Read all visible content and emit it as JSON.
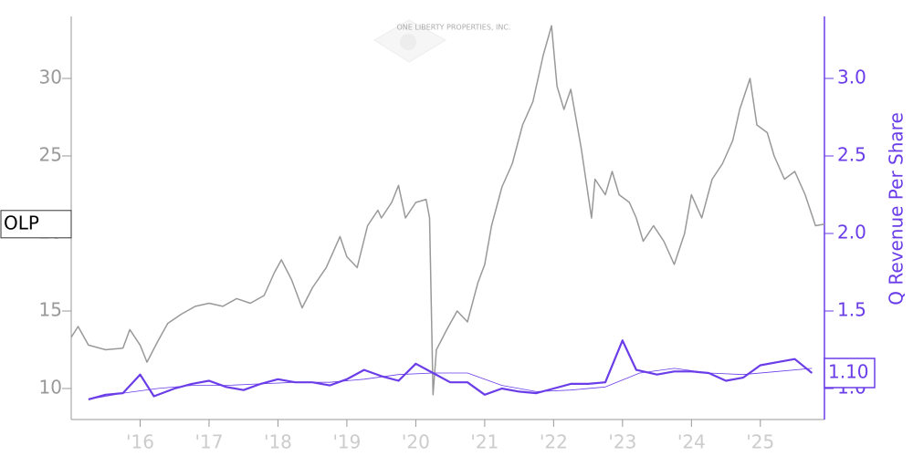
{
  "chart_data": {
    "type": "line",
    "logo_text": "ONE LIBERTY PROPERTIES, INC.",
    "y2_label": "Q Revenue Per Share",
    "xlim": [
      2015.0,
      2025.93
    ],
    "xticks": [
      {
        "value": 2016,
        "label": "'16"
      },
      {
        "value": 2017,
        "label": "'17"
      },
      {
        "value": 2018,
        "label": "'18"
      },
      {
        "value": 2019,
        "label": "'19"
      },
      {
        "value": 2020,
        "label": "'20"
      },
      {
        "value": 2021,
        "label": "'21"
      },
      {
        "value": 2022,
        "label": "'22"
      },
      {
        "value": 2023,
        "label": "'23"
      },
      {
        "value": 2024,
        "label": "'24"
      },
      {
        "value": 2025,
        "label": "'25"
      }
    ],
    "ylim": [
      8,
      34
    ],
    "yticks": [
      10,
      15,
      20,
      25,
      30
    ],
    "y2lim": [
      0.8,
      3.4
    ],
    "y2ticks": [
      {
        "value": 1.0,
        "label": "1.0"
      },
      {
        "value": 1.5,
        "label": "1.5"
      },
      {
        "value": 2.0,
        "label": "2.0"
      },
      {
        "value": 2.5,
        "label": "2.5"
      },
      {
        "value": 3.0,
        "label": "3.0"
      }
    ],
    "series": [
      {
        "name": "OLP",
        "color": "#999999",
        "width": 1.5,
        "x": [
          2015.0,
          2015.1,
          2015.25,
          2015.5,
          2015.75,
          2015.85,
          2016.0,
          2016.1,
          2016.25,
          2016.4,
          2016.6,
          2016.8,
          2017.0,
          2017.2,
          2017.4,
          2017.6,
          2017.8,
          2017.95,
          2018.05,
          2018.2,
          2018.35,
          2018.5,
          2018.7,
          2018.9,
          2019.0,
          2019.15,
          2019.3,
          2019.45,
          2019.5,
          2019.65,
          2019.75,
          2019.85,
          2020.0,
          2020.15,
          2020.2,
          2020.25,
          2020.3,
          2020.45,
          2020.6,
          2020.75,
          2020.9,
          2021.0,
          2021.1,
          2021.25,
          2021.4,
          2021.55,
          2021.7,
          2021.85,
          2021.97,
          2022.05,
          2022.15,
          2022.25,
          2022.4,
          2022.55,
          2022.6,
          2022.75,
          2022.85,
          2022.95,
          2023.1,
          2023.2,
          2023.3,
          2023.45,
          2023.6,
          2023.75,
          2023.9,
          2024.0,
          2024.15,
          2024.3,
          2024.45,
          2024.6,
          2024.7,
          2024.85,
          2024.95,
          2025.1,
          2025.2,
          2025.35,
          2025.5,
          2025.65,
          2025.8,
          2025.93
        ],
        "values": [
          13.3,
          14.0,
          12.8,
          12.5,
          12.6,
          13.8,
          12.8,
          11.7,
          13.0,
          14.2,
          14.8,
          15.3,
          15.5,
          15.3,
          15.8,
          15.5,
          16.0,
          17.5,
          18.3,
          17.0,
          15.2,
          16.5,
          17.8,
          19.8,
          18.5,
          17.8,
          20.5,
          21.5,
          21.0,
          22.0,
          23.1,
          21.0,
          22.0,
          22.2,
          21.0,
          9.6,
          12.5,
          13.8,
          15.0,
          14.3,
          16.8,
          18.0,
          20.5,
          23.0,
          24.5,
          27.0,
          28.5,
          31.5,
          33.4,
          29.5,
          28.0,
          29.3,
          25.5,
          21.0,
          23.5,
          22.5,
          24.0,
          22.5,
          22.0,
          21.0,
          19.5,
          20.5,
          19.5,
          18.0,
          20.0,
          22.5,
          21.0,
          23.5,
          24.5,
          26.0,
          28.0,
          30.0,
          27.0,
          26.5,
          25.0,
          23.5,
          24.0,
          22.5,
          20.5,
          20.6
        ]
      },
      {
        "color": "#6a3de8",
        "width": 0.8,
        "axis": "y2",
        "x": [
          2015.25,
          2015.75,
          2016.25,
          2016.75,
          2017.25,
          2017.75,
          2018.25,
          2018.75,
          2019.25,
          2019.75,
          2020.25,
          2020.75,
          2021.25,
          2021.75,
          2022.25,
          2022.75,
          2023.25,
          2023.75,
          2024.25,
          2024.75,
          2025.25,
          2025.75
        ],
        "values": [
          0.93,
          0.97,
          1.0,
          1.02,
          1.02,
          1.03,
          1.04,
          1.04,
          1.06,
          1.09,
          1.1,
          1.1,
          1.02,
          0.98,
          0.99,
          1.01,
          1.1,
          1.13,
          1.1,
          1.09,
          1.11,
          1.13
        ]
      },
      {
        "color": "#6a3de8",
        "width": 2.2,
        "axis": "y2",
        "x": [
          2015.25,
          2015.5,
          2015.75,
          2016.0,
          2016.2,
          2016.5,
          2016.75,
          2017.0,
          2017.25,
          2017.5,
          2017.75,
          2018.0,
          2018.25,
          2018.5,
          2018.75,
          2019.0,
          2019.25,
          2019.5,
          2019.75,
          2020.0,
          2020.25,
          2020.5,
          2020.75,
          2021.0,
          2021.25,
          2021.5,
          2021.75,
          2022.0,
          2022.25,
          2022.5,
          2022.75,
          2023.0,
          2023.2,
          2023.5,
          2023.75,
          2024.0,
          2024.25,
          2024.5,
          2024.75,
          2025.0,
          2025.25,
          2025.5,
          2025.75
        ],
        "values": [
          0.93,
          0.96,
          0.97,
          1.09,
          0.95,
          1.0,
          1.03,
          1.05,
          1.01,
          0.99,
          1.03,
          1.06,
          1.04,
          1.04,
          1.02,
          1.06,
          1.12,
          1.08,
          1.05,
          1.16,
          1.1,
          1.04,
          1.04,
          0.96,
          1.0,
          0.98,
          0.97,
          1.0,
          1.03,
          1.03,
          1.04,
          1.31,
          1.12,
          1.09,
          1.11,
          1.11,
          1.1,
          1.05,
          1.07,
          1.15,
          1.17,
          1.19,
          1.1
        ],
        "value_labels": [
          null,
          null,
          null,
          null,
          null,
          null,
          null,
          null,
          null,
          null,
          null,
          null,
          null,
          null,
          null,
          null,
          null,
          null,
          null,
          null,
          null,
          null,
          null,
          null,
          null,
          null,
          null,
          null,
          null,
          null,
          null,
          null,
          null,
          null,
          null,
          null,
          null,
          null,
          null,
          null,
          null,
          null,
          "1.10"
        ]
      }
    ]
  }
}
